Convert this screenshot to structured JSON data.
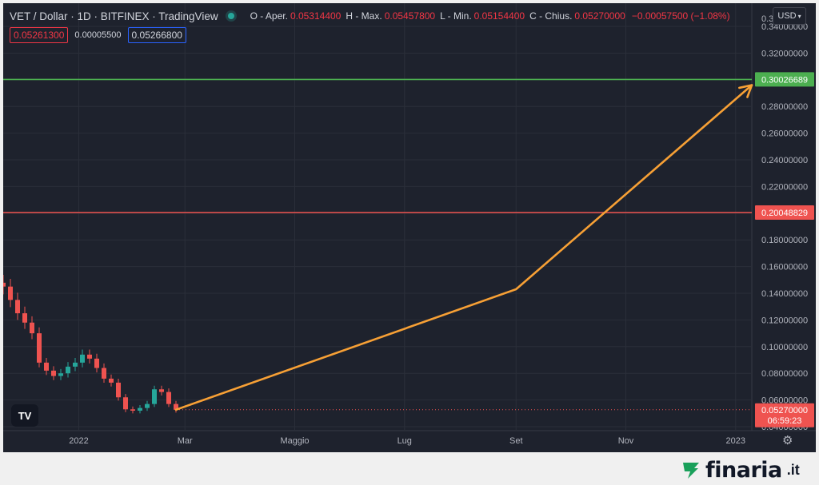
{
  "header": {
    "symbol": "VET / Dollar · 1D · BITFINEX · TradingView",
    "ohlc": [
      {
        "key": "O - Aper.",
        "value": "0.05314400"
      },
      {
        "key": "H - Max.",
        "value": "0.05457800"
      },
      {
        "key": "L - Min.",
        "value": "0.05154400"
      },
      {
        "key": "C - Chius.",
        "value": "0.05270000"
      }
    ],
    "change": "−0.00057500 (−1.08%)",
    "bid": "0.05261300",
    "spread": "0.00005500",
    "ask": "0.05266800"
  },
  "toolbar": {
    "currency_label": "USD"
  },
  "logo": {
    "label": "TV"
  },
  "brand": {
    "name": "finaria",
    "tld": ".it"
  },
  "colors": {
    "background": "#1e222d",
    "grid": "#2a2e39",
    "up": "#26a69a",
    "down": "#ef5350",
    "target_line": "#4caf50",
    "support_line": "#ef5350",
    "arrow": "#f7a035"
  },
  "chart_data": {
    "type": "line",
    "title": "VET / Dollar",
    "xlabel": "",
    "ylabel": "",
    "x_ticks": [
      "2022",
      "Mar",
      "Maggio",
      "Lug",
      "Set",
      "Nov",
      "2023"
    ],
    "y_ticks": [
      "0.34000000",
      "0.32000000",
      "0.30000000",
      "0.28000000",
      "0.26000000",
      "0.24000000",
      "0.22000000",
      "0.20000000",
      "0.18000000",
      "0.16000000",
      "0.14000000",
      "0.12000000",
      "0.10000000",
      "0.08000000",
      "0.06000000",
      "0.04000000"
    ],
    "y_top_partial": "0.3",
    "ylim": [
      0.04,
      0.355
    ],
    "grid": true,
    "price_series": {
      "name": "VET/USD",
      "x": [
        "2021-11-20",
        "2021-11-24",
        "2021-11-28",
        "2021-12-02",
        "2021-12-06",
        "2021-12-10",
        "2021-12-14",
        "2021-12-18",
        "2021-12-22",
        "2021-12-26",
        "2021-12-30",
        "2022-01-03",
        "2022-01-07",
        "2022-01-11",
        "2022-01-15",
        "2022-01-19",
        "2022-01-23",
        "2022-01-27",
        "2022-01-31",
        "2022-02-04",
        "2022-02-08",
        "2022-02-12",
        "2022-02-16",
        "2022-02-20",
        "2022-02-24"
      ],
      "y": [
        0.145,
        0.135,
        0.125,
        0.118,
        0.11,
        0.088,
        0.082,
        0.078,
        0.08,
        0.085,
        0.088,
        0.094,
        0.091,
        0.084,
        0.076,
        0.073,
        0.062,
        0.053,
        0.052,
        0.054,
        0.057,
        0.068,
        0.066,
        0.057,
        0.0527
      ]
    },
    "horizontal_lines": [
      {
        "value": 0.30026689,
        "label": "0.30026689",
        "color": "#4caf50"
      },
      {
        "value": 0.20048829,
        "label": "0.20048829",
        "color": "#ef5350"
      }
    ],
    "last_price": {
      "label": "0.05270000",
      "countdown": "06:59:23"
    },
    "projection_arrow": [
      {
        "x": "2022-02-24",
        "y": 0.0527
      },
      {
        "x": "2022-09-01",
        "y": 0.143
      },
      {
        "x": "2023-01-10",
        "y": 0.296
      }
    ]
  }
}
